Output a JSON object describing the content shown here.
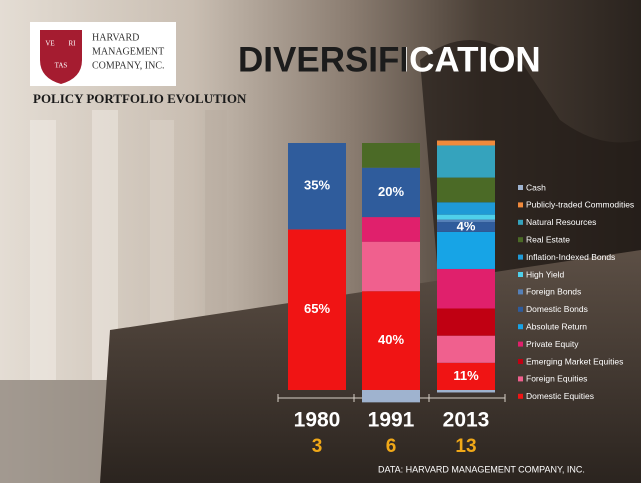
{
  "logo": {
    "shield_text": [
      "VE",
      "RI",
      "TAS"
    ],
    "name_lines": [
      "HARVARD",
      "MANAGEMENT",
      "COMPANY, INC."
    ]
  },
  "chart_data": {
    "type": "stacked_bar",
    "title": "DIVERSIFICATION",
    "subtitle": "POLICY PORTFOLIO EVOLUTION",
    "source": "DATA: HARVARD MANAGEMENT COMPANY, INC.",
    "categories": [
      "1980",
      "1991",
      "2013"
    ],
    "counts": [
      3,
      6,
      13
    ],
    "series": [
      {
        "name": "Cash",
        "color": "#9fb3cf",
        "values": [
          null,
          -5,
          -1
        ]
      },
      {
        "name": "Publicly-traded Commodities",
        "color": "#f08a3c",
        "values": [
          null,
          null,
          2
        ]
      },
      {
        "name": "Natural Resources",
        "color": "#35a3bd",
        "values": [
          null,
          null,
          13
        ]
      },
      {
        "name": "Real Estate",
        "color": "#4b6a26",
        "values": [
          null,
          10,
          10
        ]
      },
      {
        "name": "Inflation-Indexed Bonds",
        "color": "#1f9ad6",
        "values": [
          null,
          null,
          5
        ]
      },
      {
        "name": "High Yield",
        "color": "#4fd0ea",
        "values": [
          null,
          null,
          2
        ]
      },
      {
        "name": "Foreign Bonds",
        "color": "#5580b8",
        "values": [
          null,
          null,
          1
        ]
      },
      {
        "name": "Domestic Bonds",
        "color": "#2f5c9c",
        "values": [
          35,
          20,
          4
        ],
        "value_labels": [
          "35%",
          "20%",
          "4%"
        ]
      },
      {
        "name": "Absolute Return",
        "color": "#17a4e6",
        "values": [
          null,
          null,
          15
        ]
      },
      {
        "name": "Private Equity",
        "color": "#e0206c",
        "values": [
          null,
          10,
          16
        ]
      },
      {
        "name": "Emerging Market Equities",
        "color": "#c00012",
        "values": [
          null,
          null,
          11
        ]
      },
      {
        "name": "Foreign Equities",
        "color": "#f0608e",
        "values": [
          null,
          20,
          11
        ]
      },
      {
        "name": "Domestic Equities",
        "color": "#f01414",
        "values": [
          65,
          40,
          11
        ],
        "value_labels": [
          "65%",
          "40%",
          "11%"
        ]
      }
    ]
  }
}
